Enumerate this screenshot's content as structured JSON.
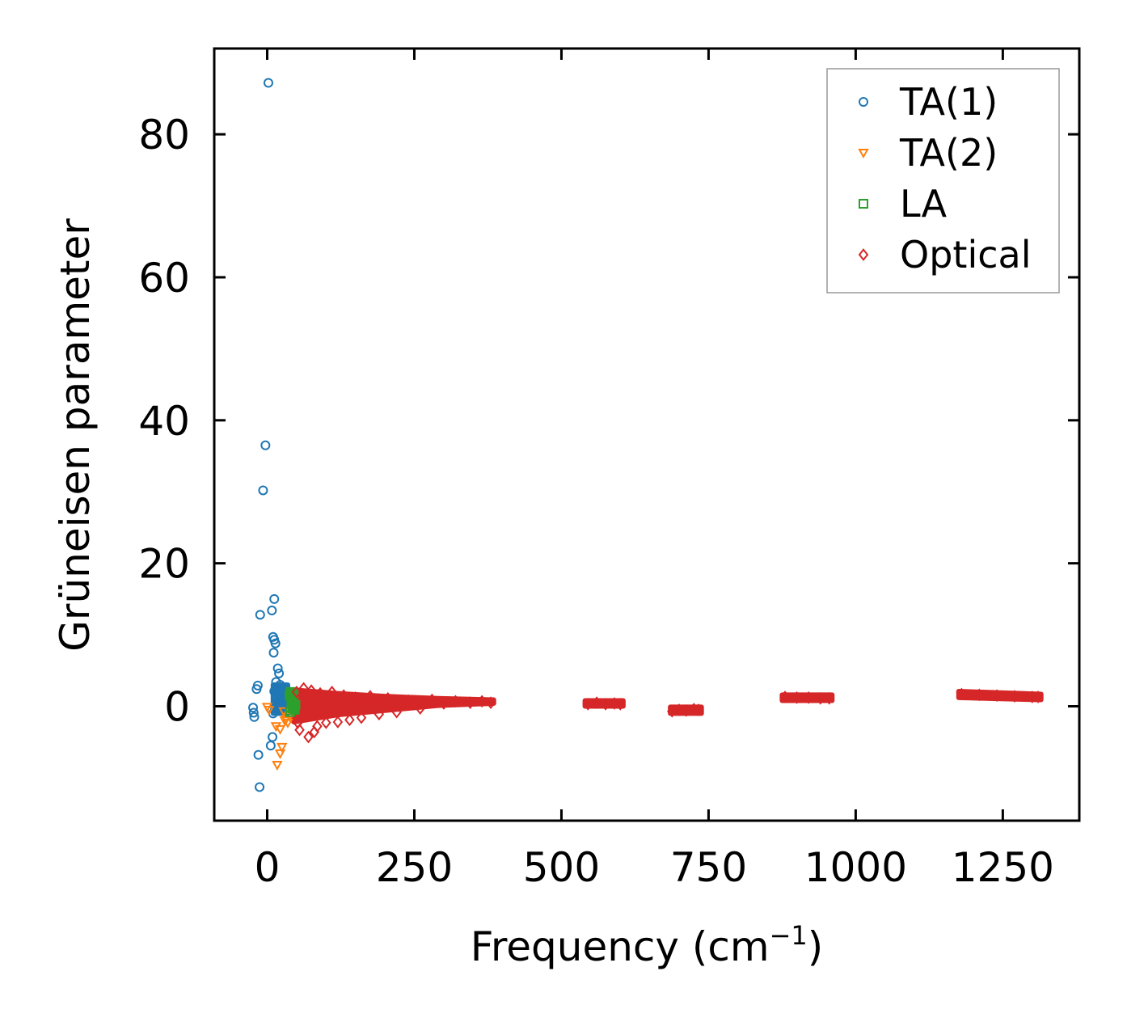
{
  "chart_data": {
    "type": "scatter",
    "title": "",
    "xlabel": "Frequency (cm",
    "xlabel_sup": "−1",
    "xlabel_end": ")",
    "ylabel": "Grüneisen parameter",
    "xlim": [
      -90,
      1380
    ],
    "ylim": [
      -16,
      92
    ],
    "xticks": [
      0,
      250,
      500,
      750,
      1000,
      1250
    ],
    "xtick_labels": [
      "0",
      "250",
      "500",
      "750",
      "1000",
      "1250"
    ],
    "yticks": [
      0,
      20,
      40,
      60,
      80
    ],
    "ytick_labels": [
      "0",
      "20",
      "40",
      "60",
      "80"
    ],
    "grid": false,
    "legend_position": "top-right",
    "series": [
      {
        "name": "TA(1)",
        "marker": "circle",
        "color": "#1f77b4",
        "points": [
          [
            2,
            87.2
          ],
          [
            -3,
            36.5
          ],
          [
            -7,
            30.2
          ],
          [
            12,
            15
          ],
          [
            8,
            13.4
          ],
          [
            -12,
            12.8
          ],
          [
            10,
            9.7
          ],
          [
            12,
            9.3
          ],
          [
            14,
            8.8
          ],
          [
            11,
            7.5
          ],
          [
            18,
            5.3
          ],
          [
            20,
            4.6
          ],
          [
            15,
            3.4
          ],
          [
            22,
            3.0
          ],
          [
            -16,
            2.9
          ],
          [
            -18,
            2.4
          ],
          [
            12,
            2.1
          ],
          [
            25,
            1.8
          ],
          [
            -24,
            -0.2
          ],
          [
            -23,
            -0.9
          ],
          [
            -22,
            -1.5
          ],
          [
            10,
            -1.0
          ],
          [
            13,
            -0.5
          ],
          [
            18,
            -0.3
          ],
          [
            22,
            0.4
          ],
          [
            26,
            0.8
          ],
          [
            30,
            1.2
          ],
          [
            16,
            0.2
          ],
          [
            20,
            -0.6
          ],
          [
            9,
            -4.3
          ],
          [
            6,
            -5.5
          ],
          [
            -15,
            -6.8
          ],
          [
            -13,
            -11.3
          ]
        ]
      },
      {
        "name": "TA(2)",
        "marker": "triangle-down",
        "color": "#ff7f0e",
        "points": [
          [
            0,
            -0.1
          ],
          [
            3,
            -0.5
          ],
          [
            15,
            -2.8
          ],
          [
            22,
            -3.2
          ],
          [
            25,
            -5.7
          ],
          [
            22,
            -6.6
          ],
          [
            17,
            -8.2
          ],
          [
            32,
            -1.8
          ],
          [
            38,
            -1.4
          ],
          [
            28,
            -0.7
          ],
          [
            35,
            -2.3
          ],
          [
            30,
            -2.0
          ]
        ]
      },
      {
        "name": "LA",
        "marker": "square",
        "color": "#2ca02c",
        "points": [
          [
            38,
            1.5
          ],
          [
            42,
            1.0
          ],
          [
            44,
            0.5
          ],
          [
            46,
            0.0
          ],
          [
            47,
            -0.5
          ],
          [
            40,
            2.0
          ],
          [
            45,
            1.8
          ],
          [
            48,
            0.2
          ],
          [
            43,
            -0.3
          ],
          [
            41,
            0.8
          ],
          [
            39,
            -0.8
          ],
          [
            46,
            -0.2
          ]
        ]
      },
      {
        "name": "Optical",
        "marker": "diamond",
        "color": "#d62728",
        "points": [
          [
            50,
            2.0
          ],
          [
            52,
            -2.3
          ],
          [
            55,
            -3.3
          ],
          [
            70,
            -4.3
          ],
          [
            80,
            -3.6
          ],
          [
            85,
            -2.8
          ],
          [
            60,
            -1.4
          ],
          [
            62,
            2.5
          ],
          [
            75,
            2.2
          ],
          [
            90,
            1.8
          ],
          [
            100,
            -2.3
          ],
          [
            110,
            2.0
          ],
          [
            120,
            -2.2
          ],
          [
            130,
            1.5
          ],
          [
            140,
            -1.9
          ],
          [
            150,
            1.2
          ],
          [
            160,
            -1.6
          ],
          [
            175,
            1.4
          ],
          [
            190,
            -1.1
          ],
          [
            205,
            1.1
          ],
          [
            220,
            -0.8
          ],
          [
            240,
            0.8
          ],
          [
            260,
            -0.3
          ],
          [
            280,
            0.9
          ],
          [
            300,
            0.4
          ],
          [
            320,
            0.7
          ],
          [
            345,
            0.5
          ],
          [
            365,
            0.7
          ],
          [
            380,
            0.5
          ],
          [
            545,
            0.3
          ],
          [
            560,
            0.5
          ],
          [
            575,
            0.3
          ],
          [
            590,
            0.4
          ],
          [
            600,
            0.3
          ],
          [
            688,
            -0.7
          ],
          [
            700,
            -0.5
          ],
          [
            712,
            -0.6
          ],
          [
            725,
            -0.4
          ],
          [
            733,
            -0.5
          ],
          [
            880,
            1.3
          ],
          [
            900,
            1.2
          ],
          [
            920,
            1.2
          ],
          [
            940,
            1.1
          ],
          [
            955,
            1.1
          ],
          [
            1180,
            1.7
          ],
          [
            1210,
            1.6
          ],
          [
            1240,
            1.5
          ],
          [
            1270,
            1.4
          ],
          [
            1300,
            1.3
          ],
          [
            1310,
            1.3
          ]
        ]
      }
    ],
    "bands": [
      {
        "series": "Optical",
        "x0": 45,
        "x1": 385,
        "y0": [
          -2.2,
          -1.2,
          -0.6,
          0.1,
          0.4
        ],
        "y1": [
          2.3,
          1.8,
          1.4,
          1.1,
          0.9
        ],
        "xs": [
          45,
          120,
          200,
          290,
          385
        ]
      },
      {
        "series": "Optical",
        "x0": 540,
        "x1": 605,
        "y0": [
          0.0,
          0.0
        ],
        "y1": [
          0.8,
          0.8
        ],
        "xs": [
          540,
          605
        ]
      },
      {
        "series": "Optical",
        "x0": 685,
        "x1": 738,
        "y0": [
          -1.0,
          -1.0
        ],
        "y1": [
          -0.1,
          -0.1
        ],
        "xs": [
          685,
          738
        ]
      },
      {
        "series": "Optical",
        "x0": 875,
        "x1": 960,
        "y0": [
          0.8,
          0.8
        ],
        "y1": [
          1.6,
          1.6
        ],
        "xs": [
          875,
          960
        ]
      },
      {
        "series": "Optical",
        "x0": 1175,
        "x1": 1315,
        "y0": [
          1.2,
          0.9
        ],
        "y1": [
          2.1,
          1.7
        ],
        "xs": [
          1175,
          1315
        ]
      },
      {
        "series": "TA(1)",
        "x0": 10,
        "x1": 35,
        "y0": [
          -1.0,
          -1.0
        ],
        "y1": [
          3.0,
          3.0
        ],
        "xs": [
          10,
          35
        ]
      },
      {
        "series": "LA",
        "x0": 37,
        "x1": 48,
        "y0": [
          -0.8,
          -0.8
        ],
        "y1": [
          2.2,
          2.2
        ],
        "xs": [
          37,
          48
        ]
      }
    ]
  }
}
